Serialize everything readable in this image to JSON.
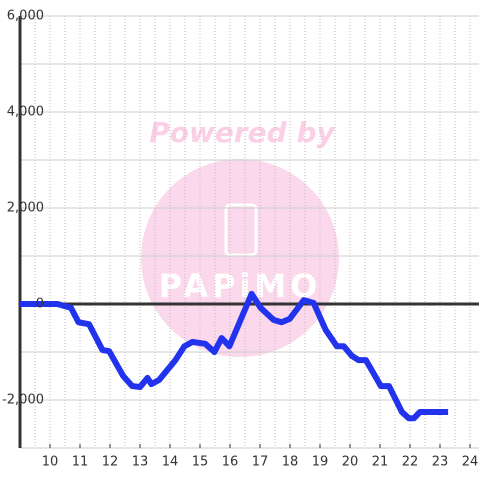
{
  "chart_data": {
    "type": "line",
    "watermark": {
      "top": "Powered by",
      "logo": "PAPiMO"
    },
    "x": [
      9,
      10.25,
      10.7,
      10.95,
      11.3,
      11.75,
      11.97,
      12.44,
      12.74,
      13.0,
      13.25,
      13.38,
      13.64,
      14.18,
      14.48,
      14.75,
      15.18,
      15.48,
      15.72,
      15.98,
      16.32,
      16.72,
      17.02,
      17.45,
      17.72,
      17.99,
      18.46,
      18.79,
      19.19,
      19.56,
      19.79,
      20.06,
      20.29,
      20.53,
      21.03,
      21.3,
      21.73,
      21.96,
      22.13,
      22.33,
      23.27
    ],
    "series": [
      {
        "color": "#2233ee",
        "values": [
          0,
          0,
          -80,
          -380,
          -420,
          -960,
          -980,
          -1500,
          -1710,
          -1730,
          -1540,
          -1670,
          -1580,
          -1170,
          -880,
          -790,
          -830,
          -1000,
          -710,
          -880,
          -380,
          210,
          -80,
          -330,
          -380,
          -310,
          80,
          20,
          -540,
          -880,
          -880,
          -1080,
          -1170,
          -1170,
          -1710,
          -1710,
          -2250,
          -2380,
          -2380,
          -2250,
          -2250
        ]
      }
    ],
    "xlim": [
      9,
      24.3
    ],
    "xticks": [
      10,
      11,
      12,
      13,
      14,
      15,
      16,
      17,
      18,
      19,
      20,
      21,
      22,
      23,
      24
    ],
    "xgrid_step": 0.5,
    "ylim": [
      -3000,
      6000
    ],
    "yticks": [
      {
        "value": 6000,
        "label": "6,000"
      },
      {
        "value": 4000,
        "label": "4,000"
      },
      {
        "value": 2000,
        "label": "2,000"
      },
      0,
      {
        "value": -2000,
        "label": "-2,000"
      }
    ],
    "yminor": [
      5000,
      3000,
      1000,
      -1000,
      -3000
    ],
    "grid": true
  }
}
